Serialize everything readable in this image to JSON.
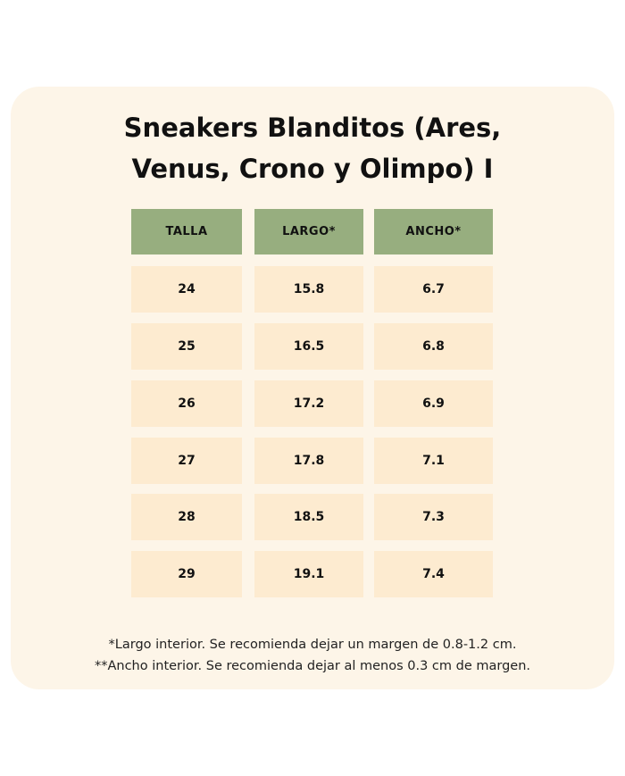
{
  "title_lines": [
    "Sneakers Blanditos (Ares,",
    "Venus, Crono y Olimpo) I"
  ],
  "colors": {
    "header": "#97ae7f",
    "row": "#fdebd0",
    "card": "#fdf5e8"
  },
  "table": {
    "headers": [
      "TALLA",
      "LARGO*",
      "ANCHO*"
    ],
    "rows": [
      [
        "24",
        "15.8",
        "6.7"
      ],
      [
        "25",
        "16.5",
        "6.8"
      ],
      [
        "26",
        "17.2",
        "6.9"
      ],
      [
        "27",
        "17.8",
        "7.1"
      ],
      [
        "28",
        "18.5",
        "7.3"
      ],
      [
        "29",
        "19.1",
        "7.4"
      ]
    ]
  },
  "notes": [
    "*Largo interior. Se recomienda dejar un margen de 0.8-1.2 cm.",
    "**Ancho interior. Se recomienda dejar al menos 0.3 cm de margen."
  ]
}
